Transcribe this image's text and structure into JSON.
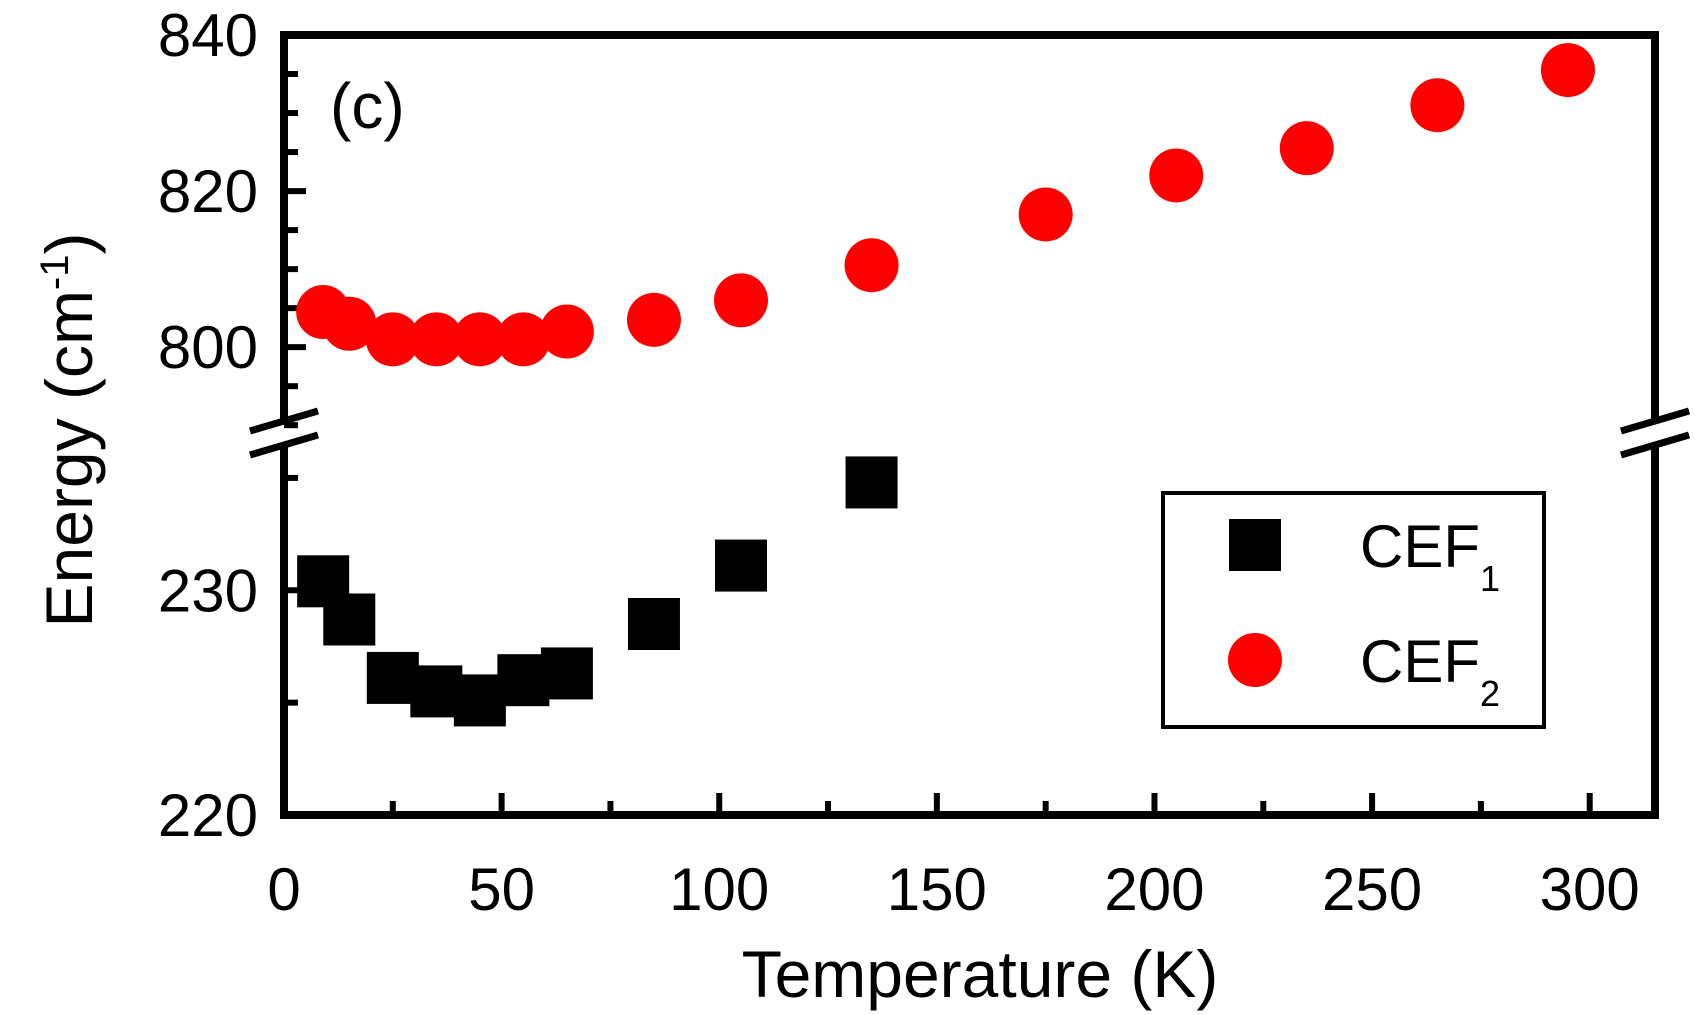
{
  "chart_data": {
    "type": "scatter",
    "panel_label": "(c)",
    "xlabel": "Temperature (K)",
    "ylabel": {
      "main": "Energy (cm",
      "sup": "-1",
      "tail": ")"
    },
    "x_range": [
      0,
      315
    ],
    "x_ticks": [
      0,
      50,
      100,
      150,
      200,
      250,
      300
    ],
    "axis_break": true,
    "upper_segment": {
      "y_range": [
        789,
        840
      ],
      "y_ticks": [
        800,
        820,
        840
      ]
    },
    "lower_segment": {
      "y_range": [
        220,
        237
      ],
      "y_ticks": [
        220,
        230
      ]
    },
    "series": [
      {
        "name": "CEF1",
        "label": "CEF",
        "sub": "1",
        "marker": "square",
        "color": "#000000",
        "points": [
          [
            9,
            230.4
          ],
          [
            15,
            228.7
          ],
          [
            25,
            226.1
          ],
          [
            35,
            225.5
          ],
          [
            45,
            225.1
          ],
          [
            55,
            226.0
          ],
          [
            65,
            226.3
          ],
          [
            85,
            228.5
          ],
          [
            105,
            231.1
          ],
          [
            135,
            234.8
          ]
        ]
      },
      {
        "name": "CEF2",
        "label": "CEF",
        "sub": "2",
        "marker": "circle",
        "color": "#ff0000",
        "points": [
          [
            9,
            804.5
          ],
          [
            15,
            803.0
          ],
          [
            25,
            801.0
          ],
          [
            35,
            801.0
          ],
          [
            45,
            801.0
          ],
          [
            55,
            801.0
          ],
          [
            65,
            802.0
          ],
          [
            85,
            803.5
          ],
          [
            105,
            806.0
          ],
          [
            135,
            810.5
          ],
          [
            175,
            817.0
          ],
          [
            205,
            822.0
          ],
          [
            235,
            825.5
          ],
          [
            265,
            831.0
          ],
          [
            295,
            835.5
          ]
        ]
      }
    ],
    "legend_position": "right-middle"
  }
}
